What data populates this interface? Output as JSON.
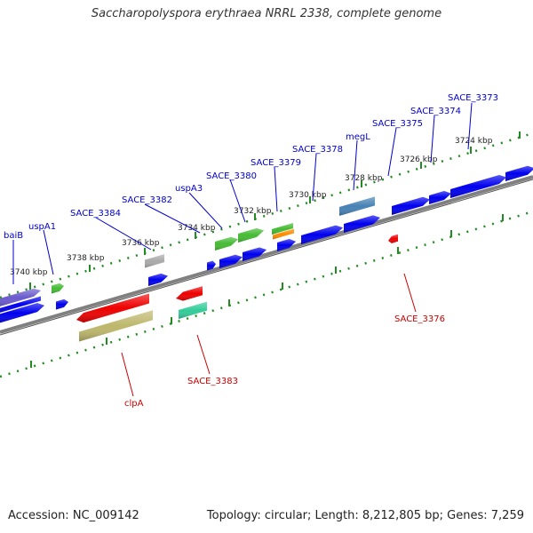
{
  "title": "Saccharopolyspora erythraea NRRL 2338, complete genome",
  "footer": {
    "accession": "Accession: NC_009142",
    "topology": "Topology: circular; Length: 8,212,805 bp; Genes: 7,259"
  },
  "scale": {
    "ticks": [
      "3740 kbp",
      "3738 kbp",
      "3736 kbp",
      "3734 kbp",
      "3732 kbp",
      "3730 kbp",
      "3728 kbp",
      "3726 kbp",
      "3724 kbp"
    ]
  },
  "colors": {
    "backbone": "#808080",
    "scale_dots": "#228b22",
    "top_label": "#0000cc",
    "bottom_label": "#cc0000",
    "gene_blue": "#0000ee",
    "gene_red": "#ee0000",
    "gene_green": "#44bb33",
    "gene_olive": "#bdb76b",
    "gene_teal": "#33cc99",
    "gene_slate": "#4682b4",
    "gene_purple": "#6a5acd",
    "gene_gray": "#aaaaaa",
    "gene_orange": "#ff8c00"
  },
  "labels": {
    "top": [
      "baiB",
      "uspA1",
      "SACE_3384",
      "SACE_3382",
      "uspA3",
      "SACE_3380",
      "SACE_3379",
      "SACE_3378",
      "megL",
      "SACE_3375",
      "SACE_3374",
      "SACE_3373"
    ],
    "bottom": [
      "clpA",
      "SACE_3383",
      "SACE_3376"
    ]
  }
}
